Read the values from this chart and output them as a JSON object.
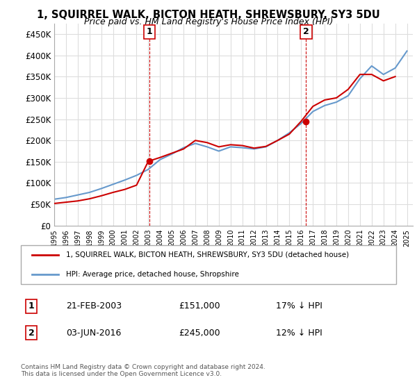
{
  "title": "1, SQUIRREL WALK, BICTON HEATH, SHREWSBURY, SY3 5DU",
  "subtitle": "Price paid vs. HM Land Registry's House Price Index (HPI)",
  "legend_line1": "1, SQUIRREL WALK, BICTON HEATH, SHREWSBURY, SY3 5DU (detached house)",
  "legend_line2": "HPI: Average price, detached house, Shropshire",
  "annotation1_label": "1",
  "annotation1_date": "21-FEB-2003",
  "annotation1_price": "£151,000",
  "annotation1_hpi": "17% ↓ HPI",
  "annotation2_label": "2",
  "annotation2_date": "03-JUN-2016",
  "annotation2_price": "£245,000",
  "annotation2_hpi": "12% ↓ HPI",
  "footnote": "Contains HM Land Registry data © Crown copyright and database right 2024.\nThis data is licensed under the Open Government Licence v3.0.",
  "hpi_color": "#6699cc",
  "price_color": "#cc0000",
  "annotation_color": "#cc0000",
  "background_color": "#ffffff",
  "grid_color": "#dddddd",
  "ylim": [
    0,
    475000
  ],
  "yticks": [
    0,
    50000,
    100000,
    150000,
    200000,
    250000,
    300000,
    350000,
    400000,
    450000
  ],
  "ytick_labels": [
    "£0",
    "£50K",
    "£100K",
    "£150K",
    "£200K",
    "£250K",
    "£300K",
    "£350K",
    "£400K",
    "£450K"
  ],
  "hpi_years": [
    1995,
    1996,
    1997,
    1998,
    1999,
    2000,
    2001,
    2002,
    2003,
    2004,
    2005,
    2006,
    2007,
    2008,
    2009,
    2010,
    2011,
    2012,
    2013,
    2014,
    2015,
    2016,
    2017,
    2018,
    2019,
    2020,
    2021,
    2022,
    2023,
    2024,
    2025
  ],
  "hpi_values": [
    62000,
    66000,
    72000,
    78000,
    87000,
    97000,
    107000,
    118000,
    132000,
    155000,
    168000,
    183000,
    193000,
    185000,
    175000,
    185000,
    183000,
    180000,
    185000,
    200000,
    218000,
    240000,
    268000,
    282000,
    290000,
    305000,
    345000,
    375000,
    355000,
    370000,
    410000
  ],
  "price_years": [
    1995,
    1996,
    1997,
    1998,
    1999,
    2000,
    2001,
    2002,
    2003,
    2004,
    2005,
    2006,
    2007,
    2008,
    2009,
    2010,
    2011,
    2012,
    2013,
    2014,
    2015,
    2016,
    2017,
    2018,
    2019,
    2020,
    2021,
    2022,
    2023,
    2024
  ],
  "price_values": [
    52000,
    55000,
    58000,
    63000,
    70000,
    78000,
    85000,
    95000,
    151000,
    160000,
    170000,
    180000,
    200000,
    195000,
    185000,
    190000,
    188000,
    182000,
    186000,
    200000,
    215000,
    245000,
    280000,
    295000,
    300000,
    320000,
    355000,
    355000,
    340000,
    350000
  ],
  "sale1_year": 2003.12,
  "sale1_price": 151000,
  "sale2_year": 2016.42,
  "sale2_price": 245000
}
